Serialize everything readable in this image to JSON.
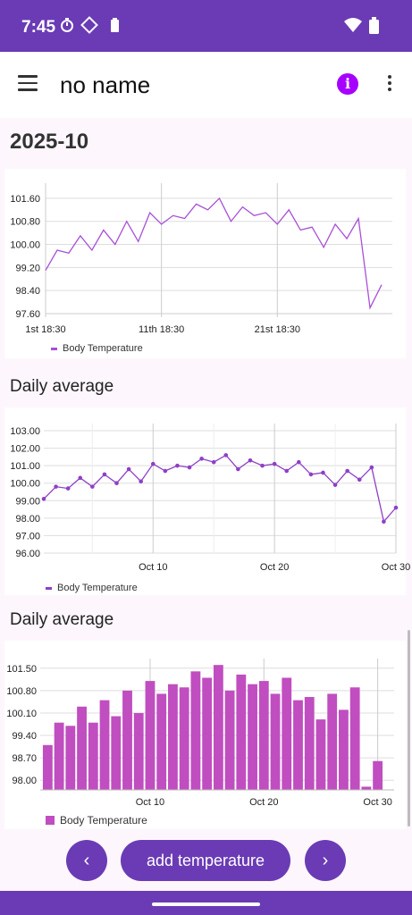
{
  "status_bar": {
    "time": "7:45"
  },
  "app_bar": {
    "title": "no name"
  },
  "month": "2025-10",
  "charts": {
    "line": {
      "y_ticks": [
        "101.60",
        "100.80",
        "100.00",
        "99.20",
        "98.40",
        "97.60"
      ],
      "x_ticks": [
        "1st 18:30",
        "11th 18:30",
        "21st 18:30"
      ],
      "legend": "Body Temperature"
    },
    "daily_line": {
      "title": "Daily average",
      "y_ticks": [
        "103.00",
        "102.00",
        "101.00",
        "100.00",
        "99.00",
        "98.00",
        "97.00",
        "96.00"
      ],
      "x_ticks": [
        "Oct 10",
        "Oct 20",
        "Oct 30"
      ],
      "legend": "Body Temperature"
    },
    "daily_bar": {
      "title": "Daily average",
      "y_ticks": [
        "101.50",
        "100.80",
        "100.10",
        "99.40",
        "98.70",
        "98.00"
      ],
      "x_ticks": [
        "Oct 10",
        "Oct 20",
        "Oct 30"
      ],
      "legend": "Body Temperature"
    }
  },
  "chart_data": [
    {
      "type": "line",
      "x": [
        1,
        2,
        3,
        4,
        5,
        6,
        7,
        8,
        9,
        10,
        11,
        12,
        13,
        14,
        15,
        16,
        17,
        18,
        19,
        20,
        21,
        22,
        23,
        24,
        25,
        26,
        27,
        28,
        29,
        30
      ],
      "series": [
        {
          "name": "Body Temperature",
          "values": [
            99.1,
            99.8,
            99.7,
            100.3,
            99.8,
            100.5,
            100.0,
            100.8,
            100.1,
            101.1,
            100.7,
            101.0,
            100.9,
            101.4,
            101.2,
            101.6,
            100.8,
            101.3,
            101.0,
            101.1,
            100.7,
            101.2,
            100.5,
            100.6,
            99.9,
            100.7,
            100.2,
            100.9,
            97.8,
            98.6
          ]
        }
      ],
      "ylim": [
        97.6,
        102.0
      ],
      "color": "#a94fd8"
    },
    {
      "type": "line",
      "x": [
        1,
        2,
        3,
        4,
        5,
        6,
        7,
        8,
        9,
        10,
        11,
        12,
        13,
        14,
        15,
        16,
        17,
        18,
        19,
        20,
        21,
        22,
        23,
        24,
        25,
        26,
        27,
        28,
        29,
        30
      ],
      "series": [
        {
          "name": "Body Temperature",
          "values": [
            99.1,
            99.8,
            99.7,
            100.3,
            99.8,
            100.5,
            100.0,
            100.8,
            100.1,
            101.1,
            100.7,
            101.0,
            100.9,
            101.4,
            101.2,
            101.6,
            100.8,
            101.3,
            101.0,
            101.1,
            100.7,
            101.2,
            100.5,
            100.6,
            99.9,
            100.7,
            100.2,
            100.9,
            97.8,
            98.6
          ]
        }
      ],
      "ylim": [
        96.0,
        103.0
      ],
      "color": "#8e3fc7"
    },
    {
      "type": "bar",
      "x": [
        1,
        2,
        3,
        4,
        5,
        6,
        7,
        8,
        9,
        10,
        11,
        12,
        13,
        14,
        15,
        16,
        17,
        18,
        19,
        20,
        21,
        22,
        23,
        24,
        25,
        26,
        27,
        28,
        29,
        30
      ],
      "series": [
        {
          "name": "Body Temperature",
          "values": [
            99.1,
            99.8,
            99.7,
            100.3,
            99.8,
            100.5,
            100.0,
            100.8,
            100.1,
            101.1,
            100.7,
            101.0,
            100.9,
            101.4,
            101.2,
            101.6,
            100.8,
            101.3,
            101.0,
            101.1,
            100.7,
            101.2,
            100.5,
            100.6,
            99.9,
            100.7,
            100.2,
            100.9,
            97.8,
            98.6
          ]
        }
      ],
      "ylim": [
        97.7,
        101.8
      ],
      "color": "#c04ec0"
    }
  ],
  "bottom": {
    "prev": "‹",
    "add": "add temperature",
    "next": "›"
  }
}
